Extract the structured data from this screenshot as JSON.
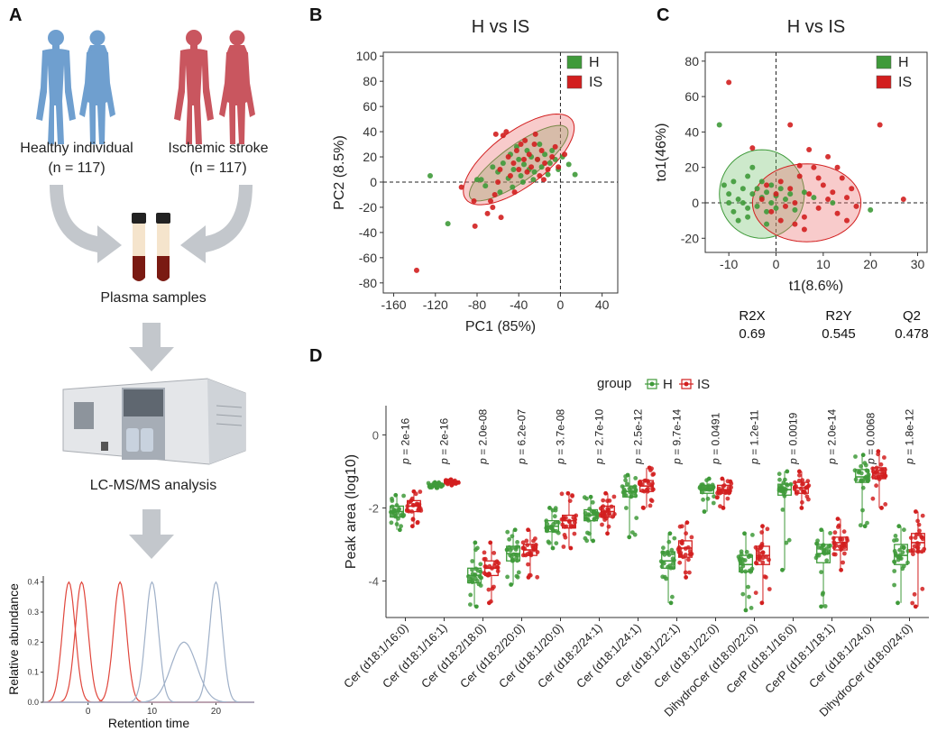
{
  "panel_labels": [
    "A",
    "B",
    "C",
    "D"
  ],
  "workflow": {
    "healthy_label": "Healthy individual",
    "healthy_n": "(n = 117)",
    "stroke_label": "Ischemic stroke",
    "stroke_n": "(n = 117)",
    "plasma_label": "Plasma samples",
    "lcms_label": "LC-MS/MS analysis",
    "colors": {
      "healthy": "#6f9fcf",
      "stroke": "#c9565f",
      "arrow": "#c3c7cc",
      "blood": "#7a1a12",
      "plasma": "#f5e4cc"
    }
  },
  "chart_data": [
    {
      "type": "line",
      "panel": "A",
      "xlabel": "Retention time",
      "ylabel": "Relative abundance",
      "xlim": [
        -7,
        26
      ],
      "ylim": [
        0,
        0.42
      ],
      "xticks": [
        0,
        10,
        20
      ],
      "yticks": [
        0.0,
        0.1,
        0.2,
        0.3,
        0.4
      ],
      "ytick_labels": [
        "0.0",
        "0.1",
        "0.2",
        "0.3",
        "0.4"
      ],
      "series": [
        {
          "peak_center": -3,
          "peak_height": 0.4,
          "sigma": 1.0,
          "color": "#e0463c"
        },
        {
          "peak_center": -1,
          "peak_height": 0.4,
          "sigma": 1.0,
          "color": "#e0463c"
        },
        {
          "peak_center": 5,
          "peak_height": 0.4,
          "sigma": 1.0,
          "color": "#e0463c"
        },
        {
          "peak_center": 10,
          "peak_height": 0.4,
          "sigma": 1.0,
          "color": "#9fb0c8"
        },
        {
          "peak_center": 15,
          "peak_height": 0.2,
          "sigma": 2.0,
          "color": "#9fb0c8"
        },
        {
          "peak_center": 20,
          "peak_height": 0.4,
          "sigma": 1.0,
          "color": "#9fb0c8"
        }
      ]
    },
    {
      "type": "scatter",
      "panel": "B",
      "title": "H vs IS",
      "xlabel": "PC1 (85%)",
      "ylabel": "PC2 (8.5%)",
      "xlim": [
        -170,
        55
      ],
      "ylim": [
        -88,
        103
      ],
      "xticks": [
        -160,
        -120,
        -80,
        -40,
        0,
        40
      ],
      "yticks": [
        -80,
        -60,
        -40,
        -20,
        0,
        20,
        40,
        60,
        80,
        100
      ],
      "legend": {
        "position": "top-right",
        "entries": [
          {
            "label": "H",
            "color": "#3f9a3a"
          },
          {
            "label": "IS",
            "color": "#d21f1f"
          }
        ]
      },
      "ellipses": [
        {
          "group": "H",
          "cx": -40,
          "cy": 15,
          "rx": 54,
          "ry": 15,
          "angle": 30
        },
        {
          "group": "IS",
          "cx": -40,
          "cy": 18,
          "rx": 60,
          "ry": 23,
          "angle": 30
        }
      ],
      "series": [
        {
          "name": "H",
          "color": "#3f9a3a",
          "points": [
            [
              -125,
              5
            ],
            [
              -108,
              -33
            ],
            [
              -80,
              2
            ],
            [
              -76,
              2
            ],
            [
              -72,
              -3
            ],
            [
              -65,
              12
            ],
            [
              -60,
              8
            ],
            [
              -55,
              15
            ],
            [
              -50,
              3
            ],
            [
              -48,
              22
            ],
            [
              -45,
              10
            ],
            [
              -42,
              28
            ],
            [
              -40,
              18
            ],
            [
              -38,
              5
            ],
            [
              -35,
              14
            ],
            [
              -32,
              25
            ],
            [
              -30,
              10
            ],
            [
              -28,
              20
            ],
            [
              -25,
              8
            ],
            [
              -22,
              18
            ],
            [
              -20,
              30
            ],
            [
              -18,
              12
            ],
            [
              -15,
              22
            ],
            [
              -12,
              6
            ],
            [
              -10,
              15
            ],
            [
              -8,
              25
            ],
            [
              -5,
              18
            ],
            [
              -2,
              10
            ],
            [
              2,
              20
            ],
            [
              8,
              14
            ],
            [
              14,
              6
            ],
            [
              -58,
              -8
            ],
            [
              -46,
              -4
            ],
            [
              -36,
              0
            ],
            [
              -26,
              2
            ]
          ]
        },
        {
          "name": "IS",
          "color": "#d21f1f",
          "points": [
            [
              -138,
              -70
            ],
            [
              -95,
              -4
            ],
            [
              -83,
              -15
            ],
            [
              -82,
              -35
            ],
            [
              -70,
              -25
            ],
            [
              -65,
              -20
            ],
            [
              -63,
              -10
            ],
            [
              -60,
              0
            ],
            [
              -58,
              10
            ],
            [
              -55,
              37
            ],
            [
              -52,
              40
            ],
            [
              -50,
              20
            ],
            [
              -48,
              5
            ],
            [
              -45,
              15
            ],
            [
              -42,
              25
            ],
            [
              -40,
              10
            ],
            [
              -38,
              30
            ],
            [
              -35,
              18
            ],
            [
              -32,
              8
            ],
            [
              -30,
              22
            ],
            [
              -28,
              12
            ],
            [
              -25,
              30
            ],
            [
              -22,
              18
            ],
            [
              -20,
              5
            ],
            [
              -18,
              25
            ],
            [
              -15,
              15
            ],
            [
              -12,
              10
            ],
            [
              -8,
              20
            ],
            [
              -5,
              28
            ],
            [
              -2,
              12
            ],
            [
              4,
              22
            ],
            [
              -67,
              -15
            ],
            [
              -57,
              -28
            ],
            [
              -44,
              -8
            ],
            [
              -34,
              33
            ],
            [
              -24,
              38
            ],
            [
              -16,
              2
            ],
            [
              -62,
              38
            ]
          ]
        }
      ]
    },
    {
      "type": "scatter",
      "panel": "C",
      "title": "H vs IS",
      "xlabel": "t1(8.6%)",
      "ylabel": "to1(46%)",
      "xlim": [
        -15,
        32
      ],
      "ylim": [
        -28,
        85
      ],
      "xticks": [
        -10,
        0,
        10,
        20,
        30
      ],
      "yticks": [
        -20,
        0,
        20,
        40,
        60,
        80
      ],
      "legend": {
        "position": "top-right",
        "entries": [
          {
            "label": "H",
            "color": "#3f9a3a"
          },
          {
            "label": "IS",
            "color": "#d21f1f"
          }
        ]
      },
      "ellipses": [
        {
          "group": "H",
          "cx": -3,
          "cy": 5,
          "rx": 9,
          "ry": 25,
          "angle": 0
        },
        {
          "group": "IS",
          "cx": 6.5,
          "cy": 0,
          "rx": 11.5,
          "ry": 22,
          "angle": 0
        }
      ],
      "series": [
        {
          "name": "H",
          "color": "#3f9a3a",
          "points": [
            [
              -12,
              44
            ],
            [
              -11,
              10
            ],
            [
              -10,
              0
            ],
            [
              -10,
              5
            ],
            [
              -9,
              -5
            ],
            [
              -9,
              12
            ],
            [
              -8,
              2
            ],
            [
              -8,
              -10
            ],
            [
              -7,
              8
            ],
            [
              -7,
              0
            ],
            [
              -6,
              15
            ],
            [
              -6,
              -3
            ],
            [
              -5,
              5
            ],
            [
              -5,
              20
            ],
            [
              -4,
              -2
            ],
            [
              -4,
              8
            ],
            [
              -3,
              3
            ],
            [
              -3,
              12
            ],
            [
              -2,
              -5
            ],
            [
              -2,
              6
            ],
            [
              -1,
              0
            ],
            [
              -1,
              10
            ],
            [
              0,
              4
            ],
            [
              0,
              -3
            ],
            [
              1,
              8
            ],
            [
              2,
              2
            ],
            [
              3,
              5
            ],
            [
              4,
              -4
            ],
            [
              6,
              6
            ],
            [
              8,
              3
            ],
            [
              12,
              0
            ],
            [
              20,
              -4
            ],
            [
              -6,
              -8
            ],
            [
              -2,
              -12
            ]
          ]
        },
        {
          "name": "IS",
          "color": "#d21f1f",
          "points": [
            [
              -10,
              68
            ],
            [
              -5,
              31
            ],
            [
              -3,
              2
            ],
            [
              -2,
              10
            ],
            [
              -1,
              -5
            ],
            [
              0,
              5
            ],
            [
              1,
              12
            ],
            [
              2,
              -2
            ],
            [
              3,
              8
            ],
            [
              4,
              0
            ],
            [
              5,
              15
            ],
            [
              6,
              -8
            ],
            [
              7,
              5
            ],
            [
              8,
              20
            ],
            [
              9,
              -3
            ],
            [
              10,
              10
            ],
            [
              11,
              2
            ],
            [
              12,
              6
            ],
            [
              13,
              -6
            ],
            [
              14,
              14
            ],
            [
              15,
              3
            ],
            [
              16,
              8
            ],
            [
              17,
              -2
            ],
            [
              3,
              44
            ],
            [
              5,
              21
            ],
            [
              7,
              30
            ],
            [
              11,
              26
            ],
            [
              9,
              14
            ],
            [
              1,
              -10
            ],
            [
              4,
              -12
            ],
            [
              6,
              -15
            ],
            [
              22,
              44
            ],
            [
              27,
              2
            ],
            [
              13,
              20
            ],
            [
              15,
              -10
            ]
          ]
        }
      ],
      "stats": [
        {
          "label": "R2X",
          "value": "0.69"
        },
        {
          "label": "R2Y",
          "value": "0.545"
        },
        {
          "label": "Q2",
          "value": "0.478"
        }
      ]
    },
    {
      "type": "box",
      "panel": "D",
      "ylabel": "Peak area (log10)",
      "ylim": [
        -5,
        0.8
      ],
      "yticks": [
        -4,
        -2,
        0
      ],
      "legend": {
        "title": "group",
        "position": "top",
        "entries": [
          {
            "label": "H",
            "color": "#3f9a3a"
          },
          {
            "label": "IS",
            "color": "#d21f1f"
          }
        ]
      },
      "categories": [
        "Cer (d18:1/16:0)",
        "Cer (d18:1/16:1)",
        "Cer (d18:2/18:0)",
        "Cer (d18:2/20:0)",
        "Cer (d18:1/20:0)",
        "Cer (d18:2/24:1)",
        "Cer (d18:1/24:1)",
        "Cer (d18:1/22:1)",
        "Cer (d18:1/22:0)",
        "DihydroCer (d18:0/22:0)",
        "CerP (d18:1/16:0)",
        "CerP (d18:1/18:1)",
        "Cer (d18:1/24:0)",
        "DihydroCer (d18:0/24:0)"
      ],
      "pvalues": [
        "2e-16",
        "2e-16",
        "2.0e-08",
        "6.2e-07",
        "3.7e-08",
        "2.7e-10",
        "2.5e-12",
        "9.7e-14",
        "0.0491",
        "1.2e-11",
        "0.0019",
        "2.0e-14",
        "0.0068",
        "1.8e-12"
      ],
      "series": [
        {
          "name": "H",
          "color": "#3f9a3a",
          "stats": [
            {
              "q1": -2.25,
              "med": -2.1,
              "q3": -1.95,
              "min": -2.6,
              "max": -1.65
            },
            {
              "q1": -1.42,
              "med": -1.38,
              "q3": -1.34,
              "min": -1.45,
              "max": -1.3
            },
            {
              "q1": -4.05,
              "med": -3.85,
              "q3": -3.65,
              "min": -4.7,
              "max": -2.95
            },
            {
              "q1": -3.45,
              "med": -3.25,
              "q3": -3.05,
              "min": -4.1,
              "max": -2.6
            },
            {
              "q1": -2.65,
              "med": -2.5,
              "q3": -2.35,
              "min": -3.1,
              "max": -2.0
            },
            {
              "q1": -2.35,
              "med": -2.2,
              "q3": -2.05,
              "min": -2.9,
              "max": -1.7
            },
            {
              "q1": -1.7,
              "med": -1.55,
              "q3": -1.4,
              "min": -2.8,
              "max": -1.1
            },
            {
              "q1": -3.65,
              "med": -3.45,
              "q3": -3.2,
              "min": -4.6,
              "max": -2.7
            },
            {
              "q1": -1.6,
              "med": -1.5,
              "q3": -1.38,
              "min": -2.1,
              "max": -1.2
            },
            {
              "q1": -3.75,
              "med": -3.55,
              "q3": -3.3,
              "min": -4.8,
              "max": -2.7
            },
            {
              "q1": -1.65,
              "med": -1.5,
              "q3": -1.35,
              "min": -3.7,
              "max": -1.0
            },
            {
              "q1": -3.5,
              "med": -3.25,
              "q3": -3.0,
              "min": -4.7,
              "max": -2.6
            },
            {
              "q1": -1.3,
              "med": -1.15,
              "q3": -0.95,
              "min": -2.5,
              "max": -0.55
            },
            {
              "q1": -3.55,
              "med": -3.3,
              "q3": -3.0,
              "min": -4.6,
              "max": -2.5
            }
          ]
        },
        {
          "name": "IS",
          "color": "#d21f1f",
          "stats": [
            {
              "q1": -2.1,
              "med": -1.95,
              "q3": -1.8,
              "min": -2.5,
              "max": -1.55
            },
            {
              "q1": -1.33,
              "med": -1.3,
              "q3": -1.26,
              "min": -1.38,
              "max": -1.22
            },
            {
              "q1": -3.85,
              "med": -3.65,
              "q3": -3.45,
              "min": -4.6,
              "max": -2.95
            },
            {
              "q1": -3.3,
              "med": -3.15,
              "q3": -3.0,
              "min": -3.9,
              "max": -2.6
            },
            {
              "q1": -2.55,
              "med": -2.35,
              "q3": -2.2,
              "min": -3.1,
              "max": -1.6
            },
            {
              "q1": -2.25,
              "med": -2.1,
              "q3": -1.95,
              "min": -2.7,
              "max": -1.6
            },
            {
              "q1": -1.55,
              "med": -1.4,
              "q3": -1.25,
              "min": -2.0,
              "max": -0.9
            },
            {
              "q1": -3.35,
              "med": -3.1,
              "q3": -2.9,
              "min": -3.9,
              "max": -2.4
            },
            {
              "q1": -1.6,
              "med": -1.5,
              "q3": -1.38,
              "min": -2.0,
              "max": -1.2
            },
            {
              "q1": -3.55,
              "med": -3.3,
              "q3": -3.05,
              "min": -4.6,
              "max": -2.5
            },
            {
              "q1": -1.6,
              "med": -1.45,
              "q3": -1.3,
              "min": -2.0,
              "max": -1.0
            },
            {
              "q1": -3.15,
              "med": -2.95,
              "q3": -2.8,
              "min": -3.7,
              "max": -2.3
            },
            {
              "q1": -1.2,
              "med": -1.05,
              "q3": -0.9,
              "min": -2.0,
              "max": -0.45
            },
            {
              "q1": -3.2,
              "med": -2.95,
              "q3": -2.7,
              "min": -4.7,
              "max": -2.1
            }
          ]
        }
      ]
    }
  ]
}
